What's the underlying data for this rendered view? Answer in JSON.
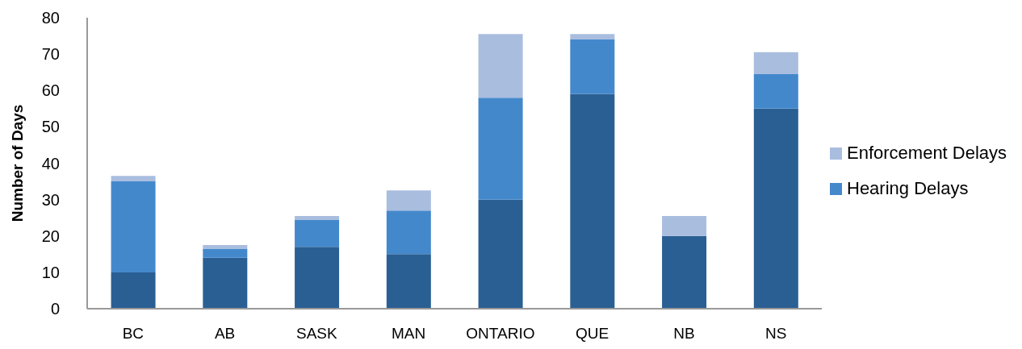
{
  "chart_data": {
    "type": "bar",
    "stacked": true,
    "ylabel": "Number of Days",
    "categories": [
      "BC",
      "AB",
      "SASK",
      "MAN",
      "ONTARIO",
      "QUE",
      "NB",
      "NS"
    ],
    "series": [
      {
        "color": "#2a5f94",
        "values": [
          10,
          14,
          17,
          15,
          30,
          59,
          20,
          55
        ]
      },
      {
        "name": "Hearing Delays",
        "color": "#4488cc",
        "values": [
          25,
          2.5,
          7.5,
          12,
          28,
          15,
          0,
          9.5
        ]
      },
      {
        "name": "Enforcement Delays",
        "color": "#a9bddf",
        "values": [
          1.5,
          1,
          1,
          5.5,
          17.5,
          1.5,
          5.5,
          6
        ]
      }
    ],
    "ylim": [
      0,
      80
    ],
    "yticks": [
      0,
      10,
      20,
      30,
      40,
      50,
      60,
      70,
      80
    ],
    "grid": false,
    "legend": "right"
  }
}
